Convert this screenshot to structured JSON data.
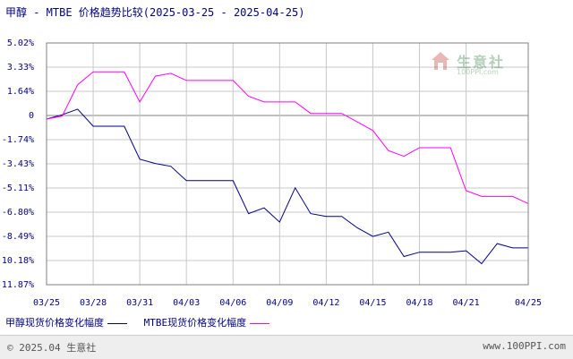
{
  "title": "甲醇 - MTBE 价格趋势比较(2025-03-25 - 2025-04-25)",
  "footer": {
    "left": "© 2025.04 生意社",
    "right": "www.100PPI.com"
  },
  "watermark": {
    "name": "生意社",
    "url": "100PPI.com",
    "icon": "house-logo-icon"
  },
  "colors": {
    "methanol": "#000080",
    "mtbe": "#ff00ff",
    "grid": "#c8c8c8",
    "zero": "#808080",
    "text": "#000080"
  },
  "chart_data": {
    "type": "line",
    "title": "甲醇 - MTBE 价格趋势比较(2025-03-25 - 2025-04-25)",
    "xlabel": "",
    "ylabel": "",
    "grid": true,
    "legend_position": "bottom-left",
    "x_ticks": [
      "03/25",
      "03/28",
      "03/31",
      "04/03",
      "04/06",
      "04/09",
      "04/12",
      "04/15",
      "04/18",
      "04/21",
      "04/25"
    ],
    "y_ticks": [
      "5.02%",
      "3.33%",
      "1.64%",
      "0",
      "-1.74%",
      "-3.43%",
      "-5.11%",
      "-6.80%",
      "-8.49%",
      "-10.18%",
      "-11.87%"
    ],
    "ylim": [
      -11.87,
      5.02
    ],
    "x": [
      "03/25",
      "03/26",
      "03/27",
      "03/28",
      "03/29",
      "03/30",
      "03/31",
      "04/01",
      "04/02",
      "04/03",
      "04/04",
      "04/05",
      "04/06",
      "04/07",
      "04/08",
      "04/09",
      "04/10",
      "04/11",
      "04/12",
      "04/13",
      "04/14",
      "04/15",
      "04/16",
      "04/17",
      "04/18",
      "04/19",
      "04/20",
      "04/21",
      "04/22",
      "04/23",
      "04/24",
      "04/25"
    ],
    "series": [
      {
        "name": "甲醇现货价格变化幅度",
        "color": "#000080",
        "values": [
          -0.3,
          0,
          0.4,
          -0.8,
          -0.8,
          -0.8,
          -3.1,
          -3.4,
          -3.6,
          -4.6,
          -4.6,
          -4.6,
          -4.6,
          -6.9,
          -6.5,
          -7.5,
          -5.1,
          -6.9,
          -7.1,
          -7.1,
          -7.9,
          -8.5,
          -8.2,
          -9.9,
          -9.6,
          -9.6,
          -9.6,
          -9.5,
          -10.4,
          -9.0,
          -9.3,
          -9.3
        ]
      },
      {
        "name": "MTBE现货价格变化幅度",
        "color": "#ff00ff",
        "values": [
          -0.3,
          -0.1,
          2.1,
          3.0,
          3.0,
          3.0,
          0.9,
          2.7,
          2.9,
          2.4,
          2.4,
          2.4,
          2.4,
          1.3,
          0.9,
          0.9,
          0.9,
          0.1,
          0.1,
          0.1,
          -0.5,
          -1.1,
          -2.5,
          -2.9,
          -2.3,
          -2.3,
          -2.3,
          -5.3,
          -5.7,
          -5.7,
          -5.7,
          -6.2
        ]
      }
    ]
  }
}
